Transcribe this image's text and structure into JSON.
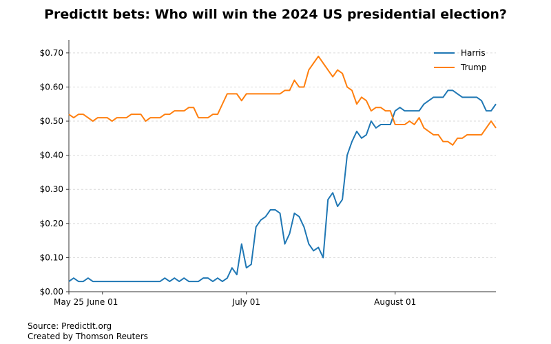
{
  "title": "PredictIt bets: Who will win the 2024 US presidential election?",
  "source_line": "Source: PredictIt.org",
  "credit_line": "Created by Thomson Reuters",
  "chart_data": {
    "type": "line",
    "title": "PredictIt bets: Who will win the 2024 US presidential election?",
    "xlabel": "",
    "ylabel": "",
    "x_start": "May 25",
    "x_end": "Aug 19",
    "xlim": [
      0,
      86
    ],
    "ylim": [
      0,
      0.73
    ],
    "grid": "horizontal dashed",
    "legend_position": "top-right",
    "x_ticks": [
      {
        "day": 0,
        "label": "May 25"
      },
      {
        "day": 7,
        "label": "June 01"
      },
      {
        "day": 37,
        "label": "July 01"
      },
      {
        "day": 68,
        "label": "August 01"
      }
    ],
    "y_ticks": [
      {
        "value": 0.0,
        "label": "$0.00"
      },
      {
        "value": 0.1,
        "label": "$0.10"
      },
      {
        "value": 0.2,
        "label": "$0.20"
      },
      {
        "value": 0.3,
        "label": "$0.30"
      },
      {
        "value": 0.4,
        "label": "$0.40"
      },
      {
        "value": 0.5,
        "label": "$0.50"
      },
      {
        "value": 0.6,
        "label": "$0.60"
      },
      {
        "value": 0.7,
        "label": "$0.70"
      }
    ],
    "x": [
      0,
      1,
      2,
      3,
      4,
      5,
      6,
      7,
      8,
      9,
      10,
      11,
      12,
      13,
      14,
      15,
      16,
      17,
      18,
      19,
      20,
      21,
      22,
      23,
      24,
      25,
      26,
      27,
      28,
      29,
      30,
      31,
      32,
      33,
      34,
      35,
      36,
      37,
      38,
      39,
      40,
      41,
      42,
      43,
      44,
      45,
      46,
      47,
      48,
      49,
      50,
      51,
      52,
      53,
      54,
      55,
      56,
      57,
      58,
      59,
      60,
      61,
      62,
      63,
      64,
      65,
      66,
      67,
      68,
      69,
      70,
      71,
      72,
      73,
      74,
      75,
      76,
      77,
      78,
      79,
      80,
      81,
      82,
      83,
      84,
      85,
      86
    ],
    "series": [
      {
        "name": "Harris",
        "color": "#1f77b4",
        "values": [
          0.03,
          0.04,
          0.03,
          0.03,
          0.04,
          0.03,
          0.03,
          0.03,
          0.03,
          0.03,
          0.03,
          0.03,
          0.03,
          0.03,
          0.03,
          0.03,
          0.03,
          0.03,
          0.03,
          0.03,
          0.04,
          0.03,
          0.04,
          0.03,
          0.04,
          0.03,
          0.03,
          0.03,
          0.04,
          0.04,
          0.03,
          0.04,
          0.03,
          0.04,
          0.07,
          0.05,
          0.14,
          0.07,
          0.08,
          0.19,
          0.21,
          0.22,
          0.24,
          0.24,
          0.23,
          0.14,
          0.17,
          0.23,
          0.22,
          0.19,
          0.14,
          0.12,
          0.13,
          0.1,
          0.27,
          0.29,
          0.25,
          0.27,
          0.4,
          0.44,
          0.47,
          0.45,
          0.46,
          0.5,
          0.48,
          0.49,
          0.49,
          0.49,
          0.53,
          0.54,
          0.53,
          0.53,
          0.53,
          0.53,
          0.55,
          0.56,
          0.57,
          0.57,
          0.57,
          0.59,
          0.59,
          0.58,
          0.57,
          0.57,
          0.57,
          0.57,
          0.56
        ]
      },
      {
        "name": "Trump",
        "color": "#ff7f0e",
        "values": [
          0.52,
          0.51,
          0.52,
          0.52,
          0.51,
          0.5,
          0.51,
          0.51,
          0.51,
          0.5,
          0.51,
          0.51,
          0.51,
          0.52,
          0.52,
          0.52,
          0.5,
          0.51,
          0.51,
          0.51,
          0.52,
          0.52,
          0.53,
          0.53,
          0.53,
          0.54,
          0.54,
          0.51,
          0.51,
          0.51,
          0.52,
          0.52,
          0.55,
          0.58,
          0.58,
          0.58,
          0.56,
          0.58,
          0.58,
          0.58,
          0.58,
          0.58,
          0.58,
          0.58,
          0.58,
          0.59,
          0.59,
          0.62,
          0.6,
          0.6,
          0.65,
          0.67,
          0.69,
          0.67,
          0.65,
          0.63,
          0.65,
          0.64,
          0.6,
          0.59,
          0.55,
          0.57,
          0.56,
          0.53,
          0.54,
          0.54,
          0.53,
          0.53,
          0.49,
          0.49,
          0.49,
          0.5,
          0.49,
          0.51,
          0.48,
          0.47,
          0.46,
          0.46,
          0.44,
          0.44,
          0.43,
          0.45,
          0.45,
          0.46,
          0.46,
          0.46,
          0.46
        ]
      }
    ],
    "series_tail": {
      "Harris": [
        0.53,
        0.53,
        0.55
      ],
      "Trump": [
        0.48,
        0.5,
        0.48
      ]
    }
  }
}
